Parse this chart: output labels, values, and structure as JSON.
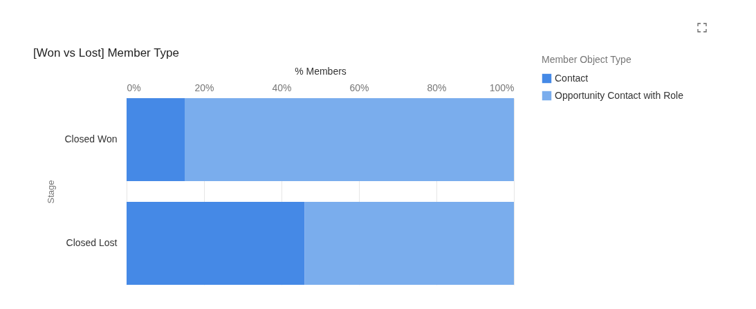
{
  "chart_data": {
    "type": "bar",
    "title": "[Won vs Lost] Member Type",
    "xlabel": "% Members",
    "ylabel": "Stage",
    "legend_title": "Member Object Type",
    "orientation": "horizontal",
    "stacked": true,
    "categories": [
      "Closed Won",
      "Closed Lost"
    ],
    "series": [
      {
        "name": "Contact",
        "color": "#4589e6",
        "values": [
          15,
          46
        ]
      },
      {
        "name": "Opportunity Contact with Role",
        "color": "#7aaded",
        "values": [
          85,
          54
        ]
      }
    ],
    "xlim": [
      0,
      100
    ],
    "xticks": [
      {
        "value": 0,
        "label": "0%"
      },
      {
        "value": 20,
        "label": "20%"
      },
      {
        "value": 40,
        "label": "40%"
      },
      {
        "value": 60,
        "label": "60%"
      },
      {
        "value": 80,
        "label": "80%"
      },
      {
        "value": 100,
        "label": "100%"
      }
    ],
    "grid": "x",
    "legend": "top right"
  }
}
